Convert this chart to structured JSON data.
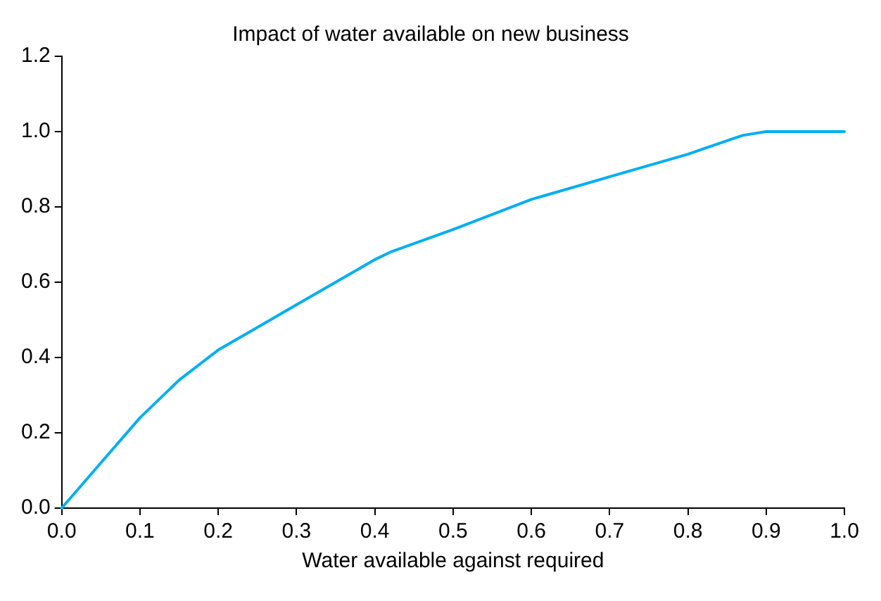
{
  "chart_data": {
    "type": "line",
    "title": "Impact of water available on new business",
    "xlabel": "Water available against required",
    "x": [
      0,
      0.05,
      0.1,
      0.15,
      0.2,
      0.25,
      0.3,
      0.35,
      0.4,
      0.42,
      0.5,
      0.6,
      0.7,
      0.8,
      0.87,
      0.9,
      0.95,
      1.0
    ],
    "series": [
      {
        "color": "#00aeef",
        "values": [
          0,
          0.12,
          0.24,
          0.34,
          0.42,
          0.48,
          0.54,
          0.6,
          0.66,
          0.68,
          0.74,
          0.82,
          0.88,
          0.94,
          0.99,
          1.0,
          1.0,
          1.0
        ]
      }
    ],
    "xlim": [
      0,
      1
    ],
    "ylim": [
      0,
      1.2
    ],
    "xticks": [
      {
        "value": 0,
        "label": "0.0"
      },
      0.1,
      0.2,
      0.3,
      0.4,
      0.5,
      0.6,
      0.7,
      0.8,
      0.9,
      {
        "value": 1,
        "label": "1.0"
      }
    ],
    "yticks": [
      {
        "value": 0,
        "label": "0.0"
      },
      0.2,
      0.4,
      0.6,
      0.8,
      {
        "value": 1,
        "label": "1.0"
      },
      1.2
    ],
    "grid": false,
    "legend": false,
    "marker": "none",
    "line_style": "solid"
  }
}
